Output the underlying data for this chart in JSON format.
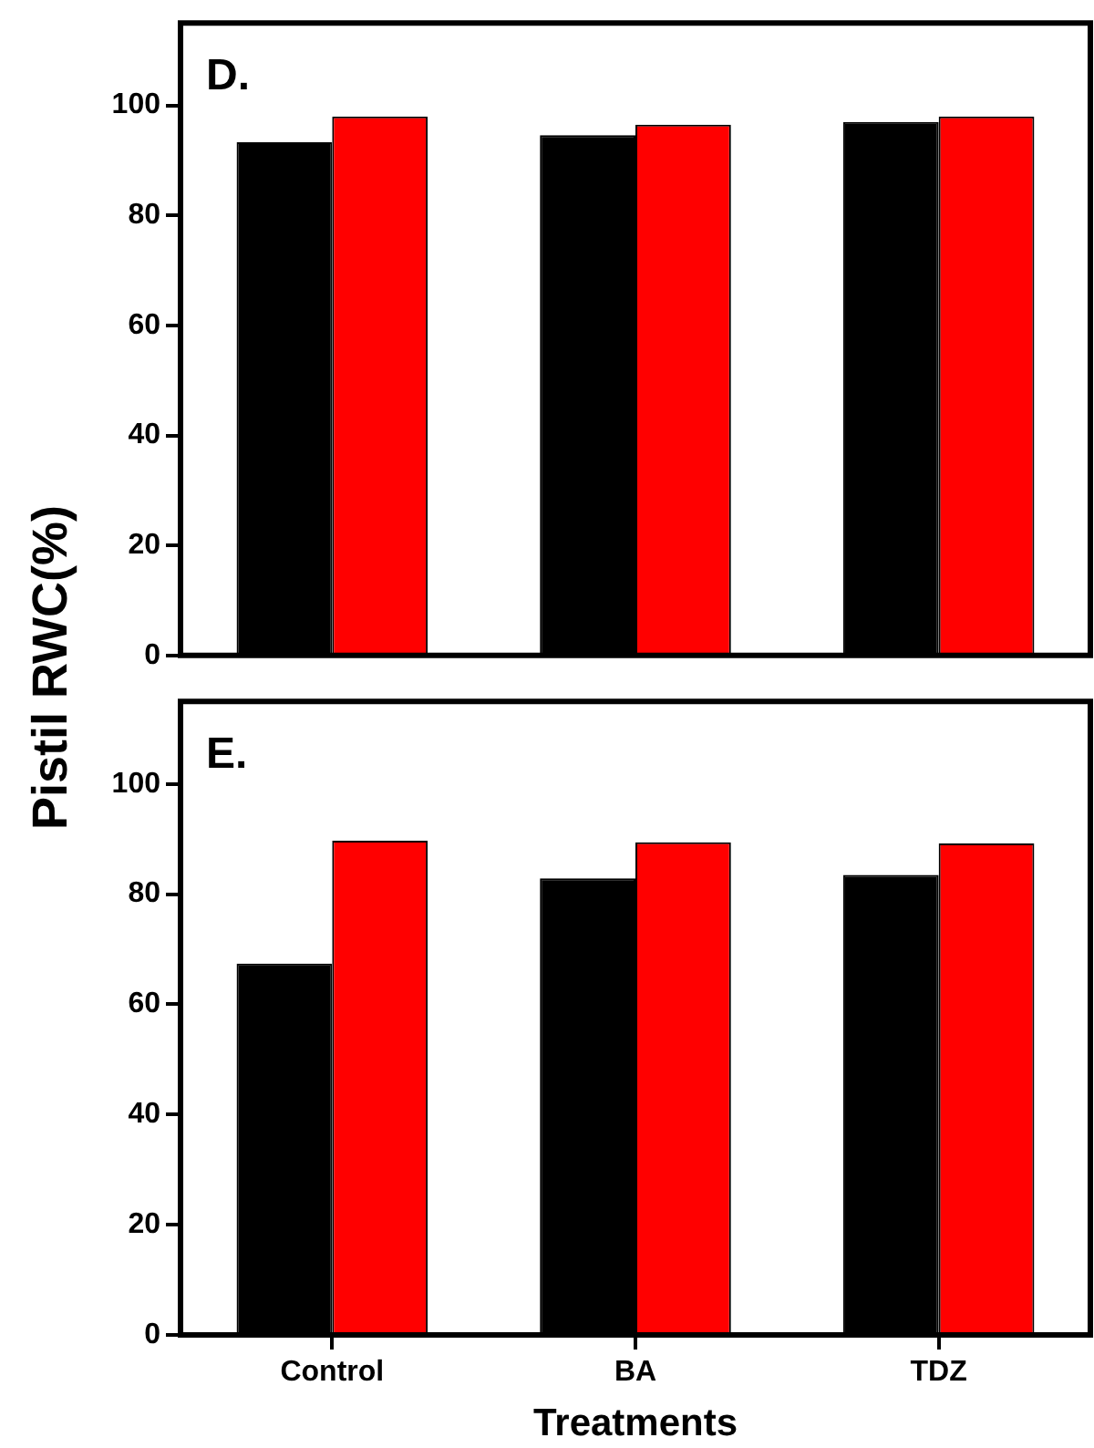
{
  "chart_data": [
    {
      "type": "bar",
      "title": "D.",
      "ylabel": "Pistil RWC(%)",
      "categories": [
        null,
        null,
        null
      ],
      "series": [
        {
          "color": "#000000",
          "values": [
            93.3,
            94.6,
            97.0
          ]
        },
        {
          "color": "#ff0000",
          "values": [
            98.0,
            96.5,
            98.0
          ]
        }
      ],
      "ylim": [
        0,
        115
      ],
      "yticks": [
        0,
        20,
        40,
        60,
        80,
        100
      ],
      "grid": false,
      "legend": false,
      "tick_labels": "y"
    },
    {
      "type": "bar",
      "title": "E.",
      "xlabel": "Treatments",
      "categories": [
        "Control",
        "BA",
        "TDZ"
      ],
      "series": [
        {
          "color": "#000000",
          "values": [
            67.4,
            82.9,
            83.5
          ]
        },
        {
          "color": "#ff0000",
          "values": [
            89.7,
            89.4,
            89.2
          ]
        }
      ],
      "ylim": [
        0,
        115
      ],
      "yticks": [
        0,
        20,
        40,
        60,
        80,
        100
      ],
      "grid": false,
      "legend": false
    }
  ]
}
